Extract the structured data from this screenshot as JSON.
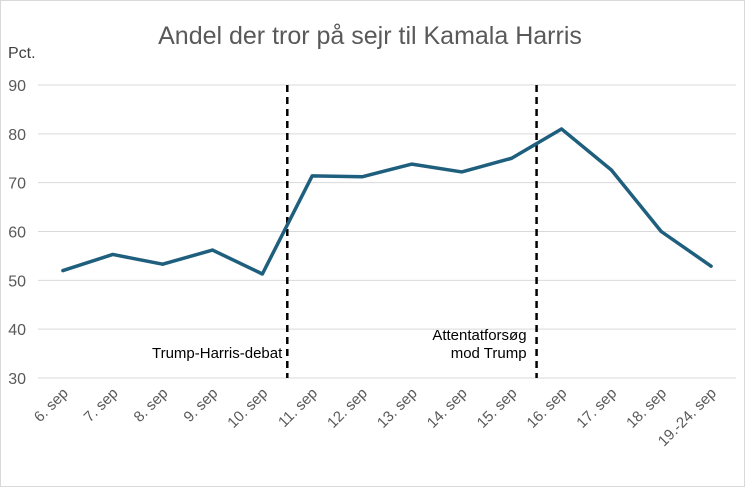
{
  "chart_data": {
    "type": "line",
    "title": "Andel der tror på sejr til Kamala Harris",
    "ylabel": "Pct.",
    "xlabel": "",
    "ylim": [
      30,
      90
    ],
    "yticks": [
      "30",
      "40",
      "50",
      "60",
      "70",
      "80",
      "90"
    ],
    "grid": true,
    "legend": "none",
    "categories": [
      "6. sep",
      "7. sep",
      "8. sep",
      "9. sep",
      "10. sep",
      "11. sep",
      "12. sep",
      "13. sep",
      "14. sep",
      "15. sep",
      "16. sep",
      "17. sep",
      "18. sep",
      "19.-24. sep"
    ],
    "series": [
      {
        "values": [
          52.0,
          55.3,
          53.3,
          56.2,
          51.3,
          71.4,
          71.2,
          73.8,
          72.2,
          75.0,
          81.0,
          72.6,
          60.0,
          52.9
        ]
      }
    ],
    "annotations": [
      {
        "lines": [
          "Trump-Harris-debat"
        ],
        "between": [
          "10. sep",
          "11. sep"
        ]
      },
      {
        "lines": [
          "Attentatforsøg",
          "mod Trump"
        ],
        "between": [
          "15. sep",
          "16. sep"
        ]
      }
    ],
    "colors": {
      "line": "#1f5f7e",
      "grid": "#d9d9d9",
      "divider": "#000000"
    }
  }
}
